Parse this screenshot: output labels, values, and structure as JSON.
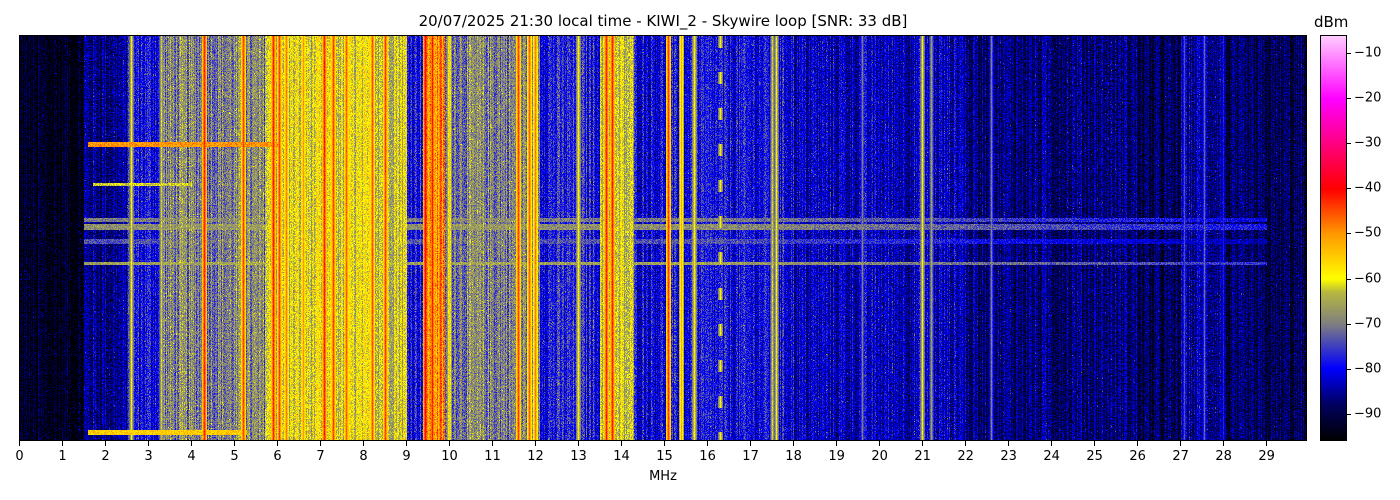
{
  "chart_data": {
    "type": "heatmap",
    "title": "20/07/2025 21:30 local time - KIWI_2 - Skywire loop [SNR: 33 dB]",
    "xlabel": "MHz",
    "ylabel": "",
    "xlim": [
      0,
      29.95
    ],
    "x_ticks": [
      "0",
      "1",
      "2",
      "3",
      "4",
      "5",
      "6",
      "7",
      "8",
      "9",
      "10",
      "11",
      "12",
      "13",
      "14",
      "15",
      "16",
      "17",
      "18",
      "19",
      "20",
      "21",
      "22",
      "23",
      "24",
      "25",
      "26",
      "27",
      "28",
      "29"
    ],
    "time_rows": 404,
    "colorbar": {
      "label": "dBm",
      "range": [
        -96,
        -6
      ],
      "ticks": [
        "−10",
        "−20",
        "−30",
        "−40",
        "−50",
        "−60",
        "−70",
        "−80",
        "−90"
      ],
      "tick_values": [
        -10,
        -20,
        -30,
        -40,
        -50,
        -60,
        -70,
        -80,
        -90
      ],
      "colormap": [
        {
          "v": -96,
          "color": "#000000"
        },
        {
          "v": -88,
          "color": "#000060"
        },
        {
          "v": -80,
          "color": "#0000ff"
        },
        {
          "v": -70,
          "color": "#808080"
        },
        {
          "v": -63,
          "color": "#b8b840"
        },
        {
          "v": -60,
          "color": "#ffff00"
        },
        {
          "v": -50,
          "color": "#ff9900"
        },
        {
          "v": -40,
          "color": "#ff0000"
        },
        {
          "v": -30,
          "color": "#ff0080"
        },
        {
          "v": -20,
          "color": "#ff00ff"
        },
        {
          "v": -6,
          "color": "#ffccff"
        }
      ]
    },
    "noise_floor": [
      {
        "from": 0,
        "to": 1.5,
        "dbm": -94
      },
      {
        "from": 1.5,
        "to": 2.5,
        "dbm": -86
      },
      {
        "from": 2.5,
        "to": 3.3,
        "dbm": -79
      },
      {
        "from": 3.3,
        "to": 5.7,
        "dbm": -70
      },
      {
        "from": 5.7,
        "to": 9.0,
        "dbm": -62
      },
      {
        "from": 9.0,
        "to": 9.4,
        "dbm": -78
      },
      {
        "from": 9.4,
        "to": 9.9,
        "dbm": -50
      },
      {
        "from": 9.9,
        "to": 12.1,
        "dbm": -70
      },
      {
        "from": 12.1,
        "to": 13.5,
        "dbm": -78
      },
      {
        "from": 13.5,
        "to": 14.3,
        "dbm": -64
      },
      {
        "from": 14.3,
        "to": 18.0,
        "dbm": -80
      },
      {
        "from": 18.0,
        "to": 22.0,
        "dbm": -83
      },
      {
        "from": 22.0,
        "to": 26.0,
        "dbm": -87
      },
      {
        "from": 26.0,
        "to": 27.0,
        "dbm": -90
      },
      {
        "from": 27.0,
        "to": 28.0,
        "dbm": -85
      },
      {
        "from": 28.0,
        "to": 29.95,
        "dbm": -90
      }
    ],
    "carriers": [
      {
        "mhz": 2.6,
        "dbm": -60
      },
      {
        "mhz": 3.3,
        "dbm": -62
      },
      {
        "mhz": 4.3,
        "dbm": -42
      },
      {
        "mhz": 5.2,
        "dbm": -44
      },
      {
        "mhz": 5.9,
        "dbm": -42
      },
      {
        "mhz": 6.05,
        "dbm": -44
      },
      {
        "mhz": 6.2,
        "dbm": -48
      },
      {
        "mhz": 6.6,
        "dbm": -50
      },
      {
        "mhz": 7.1,
        "dbm": -42
      },
      {
        "mhz": 7.3,
        "dbm": -44
      },
      {
        "mhz": 7.6,
        "dbm": -46
      },
      {
        "mhz": 8.2,
        "dbm": -45
      },
      {
        "mhz": 8.5,
        "dbm": -44
      },
      {
        "mhz": 9.45,
        "dbm": -40
      },
      {
        "mhz": 9.6,
        "dbm": -42
      },
      {
        "mhz": 9.8,
        "dbm": -45
      },
      {
        "mhz": 10.0,
        "dbm": -55
      },
      {
        "mhz": 11.6,
        "dbm": -44
      },
      {
        "mhz": 11.85,
        "dbm": -46
      },
      {
        "mhz": 12.0,
        "dbm": -48
      },
      {
        "mhz": 13.0,
        "dbm": -58
      },
      {
        "mhz": 13.65,
        "dbm": -42
      },
      {
        "mhz": 13.8,
        "dbm": -42
      },
      {
        "mhz": 14.0,
        "dbm": -58
      },
      {
        "mhz": 15.1,
        "dbm": -44
      },
      {
        "mhz": 15.4,
        "dbm": -52
      },
      {
        "mhz": 15.7,
        "dbm": -58
      },
      {
        "mhz": 16.3,
        "dbm": -58,
        "dashed": true
      },
      {
        "mhz": 17.5,
        "dbm": -62
      },
      {
        "mhz": 17.6,
        "dbm": -60
      },
      {
        "mhz": 19.6,
        "dbm": -70
      },
      {
        "mhz": 21.0,
        "dbm": -60
      },
      {
        "mhz": 21.2,
        "dbm": -66
      },
      {
        "mhz": 22.6,
        "dbm": -70
      },
      {
        "mhz": 27.1,
        "dbm": -74
      },
      {
        "mhz": 27.55,
        "dbm": -72
      },
      {
        "mhz": 28.0,
        "dbm": -78
      }
    ],
    "horizontal_bursts": [
      {
        "rows": [
          106,
          110
        ],
        "from": 1.6,
        "to": 6.0,
        "dbm": -50
      },
      {
        "rows": [
          147,
          149
        ],
        "from": 1.7,
        "to": 4.0,
        "dbm": -62
      },
      {
        "rows": [
          182,
          185
        ],
        "from": 1.5,
        "to": 29.0,
        "dbm": -70
      },
      {
        "rows": [
          188,
          193
        ],
        "from": 1.5,
        "to": 29.0,
        "dbm": -68
      },
      {
        "rows": [
          203,
          207
        ],
        "from": 1.5,
        "to": 29.0,
        "dbm": -74
      },
      {
        "rows": [
          226,
          228
        ],
        "from": 1.5,
        "to": 29.0,
        "dbm": -66
      },
      {
        "rows": [
          394,
          398
        ],
        "from": 1.6,
        "to": 5.3,
        "dbm": -55
      }
    ]
  }
}
